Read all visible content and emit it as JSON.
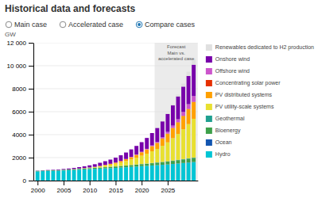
{
  "chart_data": {
    "type": "bar",
    "stacked": true,
    "title": "Historical data and forecasts",
    "subtitle": [
      {
        "label": "Main case",
        "selected": false
      },
      {
        "label": "Accelerated case",
        "selected": false
      },
      {
        "label": "Compare cases",
        "selected": true
      }
    ],
    "ylabel": "GW",
    "x": [
      2000,
      2001,
      2002,
      2003,
      2004,
      2005,
      2006,
      2007,
      2008,
      2009,
      2010,
      2011,
      2012,
      2013,
      2014,
      2015,
      2016,
      2017,
      2018,
      2019,
      2020,
      2021,
      2022,
      2023,
      2024,
      2025,
      2026,
      2027,
      2028,
      2029,
      2030
    ],
    "xlim": [
      1999.2,
      2030.8
    ],
    "xticks": [
      2000,
      2005,
      2010,
      2015,
      2020,
      2025
    ],
    "ylim": [
      0,
      12000
    ],
    "yticks": [
      0,
      2000,
      4000,
      6000,
      8000,
      {
        "value": 10000,
        "label": "10 000"
      },
      {
        "value": 12000,
        "label": "12 000"
      }
    ],
    "grid": true,
    "legend": "right",
    "annotations": [
      {
        "text": "Forecast\nMain vs.\naccelerated case",
        "x": 2023
      }
    ],
    "series": [
      {
        "name": "Hydro",
        "color": "#00c5d4",
        "values": [
          800,
          820,
          835,
          850,
          860,
          880,
          900,
          920,
          950,
          970,
          1000,
          1020,
          1040,
          1060,
          1080,
          1100,
          1130,
          1160,
          1190,
          1220,
          1250,
          1280,
          1310,
          1340,
          1370,
          1400,
          1440,
          1480,
          1520,
          1560,
          1600
        ]
      },
      {
        "name": "Ocean",
        "color": "#1255b0",
        "values": [
          2,
          2,
          2,
          2,
          2,
          2,
          2,
          2,
          3,
          3,
          3,
          3,
          3,
          3,
          3,
          3,
          4,
          4,
          4,
          4,
          5,
          5,
          5,
          6,
          7,
          8,
          10,
          12,
          14,
          16,
          18
        ]
      },
      {
        "name": "Bioenergy",
        "color": "#3da04a",
        "values": [
          40,
          42,
          44,
          46,
          48,
          50,
          55,
          60,
          65,
          70,
          75,
          80,
          90,
          100,
          110,
          120,
          130,
          140,
          150,
          160,
          170,
          180,
          195,
          210,
          225,
          245,
          265,
          285,
          305,
          325,
          345
        ]
      },
      {
        "name": "Geothermal",
        "color": "#20a090",
        "values": [
          8,
          8,
          9,
          9,
          10,
          10,
          10,
          11,
          11,
          12,
          12,
          13,
          13,
          14,
          14,
          15,
          15,
          16,
          17,
          18,
          19,
          20,
          21,
          22,
          24,
          26,
          28,
          30,
          33,
          36,
          39
        ]
      },
      {
        "name": "PV utility-scale systems",
        "color": "#e8e030",
        "values": [
          0,
          0,
          1,
          1,
          2,
          3,
          5,
          8,
          13,
          20,
          30,
          55,
          95,
          140,
          180,
          230,
          295,
          380,
          480,
          590,
          720,
          860,
          1020,
          1180,
          1400,
          1650,
          1950,
          2250,
          2600,
          2980,
          3380
        ]
      },
      {
        "name": "PV distributed systems",
        "color": "#ffa000",
        "values": [
          0,
          0,
          0,
          1,
          1,
          2,
          3,
          5,
          7,
          10,
          15,
          20,
          30,
          45,
          65,
          90,
          120,
          155,
          195,
          245,
          300,
          365,
          440,
          520,
          630,
          750,
          880,
          1010,
          1150,
          1300,
          1450
        ]
      },
      {
        "name": "Concentrating solar power",
        "color": "#e63000",
        "values": [
          1,
          1,
          1,
          1,
          1,
          2,
          2,
          2,
          2,
          2,
          3,
          3,
          4,
          4,
          4,
          5,
          5,
          5,
          6,
          6,
          6,
          7,
          7,
          8,
          10,
          12,
          15,
          18,
          22,
          26,
          30
        ]
      },
      {
        "name": "Offshore wind",
        "color": "#cc55cc",
        "values": [
          0,
          0,
          0,
          1,
          1,
          1,
          1,
          2,
          2,
          3,
          4,
          5,
          6,
          7,
          8,
          12,
          15,
          19,
          24,
          30,
          36,
          46,
          60,
          78,
          110,
          150,
          200,
          260,
          330,
          410,
          500
        ]
      },
      {
        "name": "Onshore wind",
        "color": "#7700aa",
        "values": [
          18,
          22,
          28,
          36,
          47,
          60,
          75,
          95,
          120,
          150,
          185,
          225,
          270,
          315,
          365,
          420,
          490,
          565,
          650,
          745,
          840,
          950,
          1080,
          1210,
          1380,
          1560,
          1760,
          1980,
          2210,
          2460,
          2730
        ]
      },
      {
        "name": "Renewables dedicated to H2 production",
        "color": "#e0e0e0",
        "values": [
          0,
          0,
          0,
          0,
          0,
          0,
          0,
          0,
          0,
          0,
          0,
          0,
          0,
          0,
          0,
          0,
          0,
          0,
          0,
          0,
          0,
          0,
          0,
          5,
          20,
          50,
          100,
          170,
          260,
          370,
          500
        ]
      }
    ]
  }
}
